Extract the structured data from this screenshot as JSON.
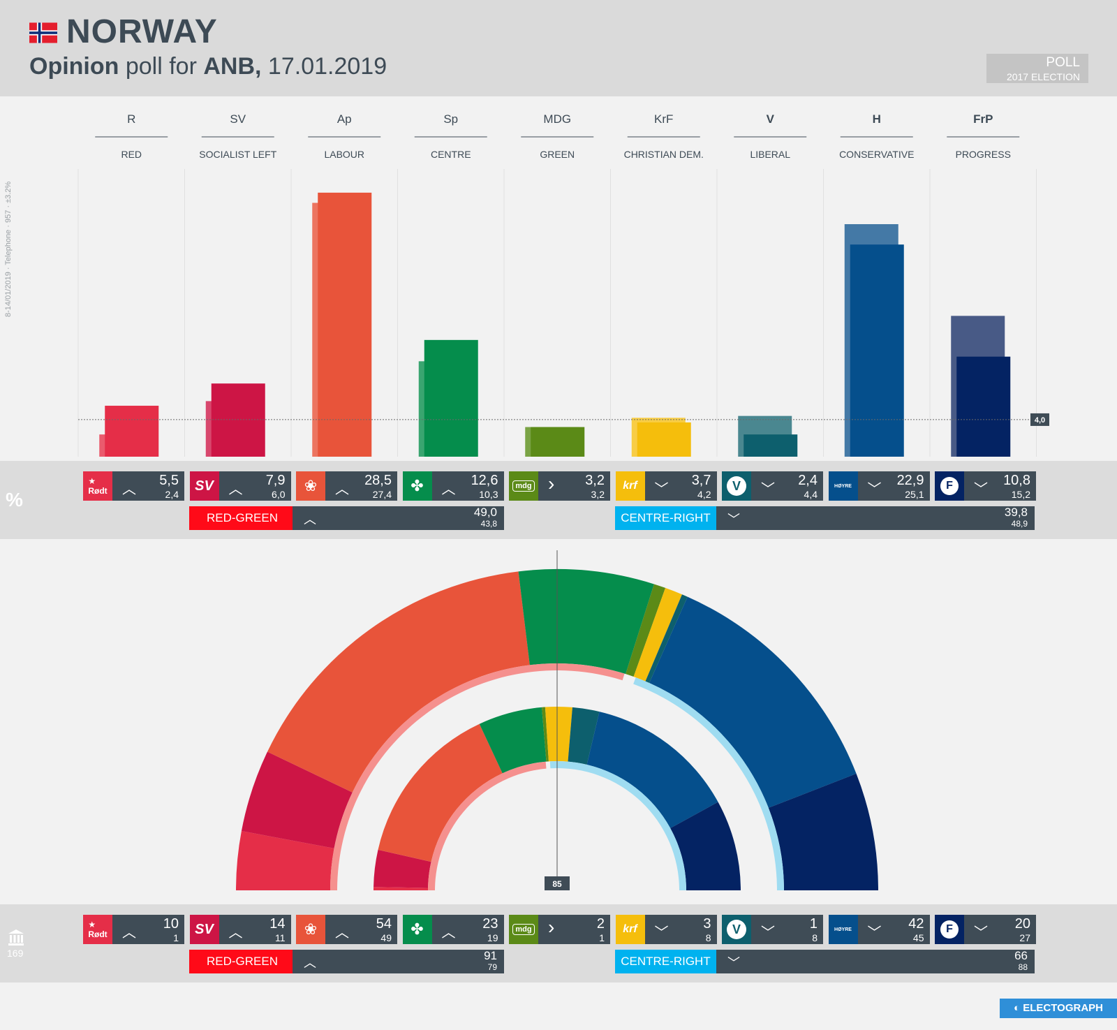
{
  "header": {
    "country": "NORWAY",
    "subtitle_1": "Opinion",
    "subtitle_2": " poll for ",
    "subtitle_3": "ANB,",
    "subtitle_4": " 17.01.2019",
    "legend_poll": "POLL",
    "legend_election": "2017 ELECTION"
  },
  "methodology": "8-14/01/2019 · Telephone · 957 · ±3.2%",
  "threshold_label": "4,0",
  "majority_label": "85",
  "percent_symbol": "%",
  "total_seats": "169",
  "brand": "ELECTOGRAPH",
  "parties": [
    {
      "abbr": "R",
      "name": "RED",
      "color": "#e52e48",
      "prev_color": "#ea5b6d",
      "logo": "Rødt",
      "pct": "5,5",
      "pct_prev": "2,4",
      "arrow": "up",
      "seats": "10",
      "seats_prev": "1"
    },
    {
      "abbr": "SV",
      "name": "SOCIALIST LEFT",
      "color": "#cd1545",
      "prev_color": "#d8476d",
      "logo": "SV",
      "pct": "7,9",
      "pct_prev": "6,0",
      "arrow": "up",
      "seats": "14",
      "seats_prev": "11"
    },
    {
      "abbr": "Ap",
      "name": "LABOUR",
      "color": "#e8543a",
      "prev_color": "#ec7460",
      "logo": "rose",
      "pct": "28,5",
      "pct_prev": "27,4",
      "arrow": "up",
      "seats": "54",
      "seats_prev": "49"
    },
    {
      "abbr": "Sp",
      "name": "CENTRE",
      "color": "#058d4c",
      "prev_color": "#3aa570",
      "logo": "clover",
      "pct": "12,6",
      "pct_prev": "10,3",
      "arrow": "up",
      "seats": "23",
      "seats_prev": "19"
    },
    {
      "abbr": "MDG",
      "name": "GREEN",
      "color": "#5b8a17",
      "prev_color": "#7aa345",
      "logo": "mdg",
      "pct": "3,2",
      "pct_prev": "3,2",
      "arrow": "right",
      "seats": "2",
      "seats_prev": "1"
    },
    {
      "abbr": "KrF",
      "name": "CHRISTIAN DEM.",
      "color": "#f5be0c",
      "prev_color": "#f8cd45",
      "logo": "krf",
      "pct": "3,7",
      "pct_prev": "4,2",
      "arrow": "down",
      "seats": "3",
      "seats_prev": "8"
    },
    {
      "abbr": "V",
      "name": "LIBERAL",
      "color": "#0d5f6d",
      "prev_color": "#4a8790",
      "logo": "V",
      "pct": "2,4",
      "pct_prev": "4,4",
      "arrow": "down",
      "seats": "1",
      "seats_prev": "8"
    },
    {
      "abbr": "H",
      "name": "CONSERVATIVE",
      "color": "#054f8c",
      "prev_color": "#4479a6",
      "logo": "HØYRE",
      "pct": "22,9",
      "pct_prev": "25,1",
      "arrow": "down",
      "seats": "42",
      "seats_prev": "45"
    },
    {
      "abbr": "FrP",
      "name": "PROGRESS",
      "color": "#042363",
      "prev_color": "#485a86",
      "logo": "F",
      "pct": "10,8",
      "pct_prev": "15,2",
      "arrow": "down",
      "seats": "20",
      "seats_prev": "27"
    }
  ],
  "blocs": {
    "red_green": {
      "label": "RED-GREEN",
      "color": "#ff0a18",
      "pct": "49,0",
      "pct_prev": "43,8",
      "arrow": "up",
      "seats": "91",
      "seats_prev": "79"
    },
    "centre_right": {
      "label": "CENTRE-RIGHT",
      "color": "#00b2ef",
      "pct": "39,8",
      "pct_prev": "48,9",
      "arrow": "down",
      "seats": "66",
      "seats_prev": "88"
    }
  },
  "chart_data": [
    {
      "type": "bar",
      "categories": [
        "R",
        "SV",
        "Ap",
        "Sp",
        "MDG",
        "KrF",
        "V",
        "H",
        "FrP"
      ],
      "series": [
        {
          "name": "POLL",
          "values": [
            5.5,
            7.9,
            28.5,
            12.6,
            3.2,
            3.7,
            2.4,
            22.9,
            10.8
          ]
        },
        {
          "name": "2017 ELECTION",
          "values": [
            2.4,
            6.0,
            27.4,
            10.3,
            3.2,
            4.2,
            4.4,
            25.1,
            15.2
          ]
        }
      ],
      "ylim": [
        0,
        30
      ],
      "threshold": 4.0
    },
    {
      "type": "pie",
      "categories": [
        "R",
        "SV",
        "Ap",
        "Sp",
        "MDG",
        "KrF",
        "V",
        "H",
        "FrP"
      ],
      "series": [
        {
          "name": "POLL",
          "values": [
            10,
            14,
            54,
            23,
            2,
            3,
            1,
            42,
            20
          ]
        },
        {
          "name": "2017 ELECTION",
          "values": [
            1,
            11,
            49,
            19,
            1,
            8,
            8,
            45,
            27
          ]
        }
      ],
      "total": 169,
      "majority": 85
    }
  ]
}
